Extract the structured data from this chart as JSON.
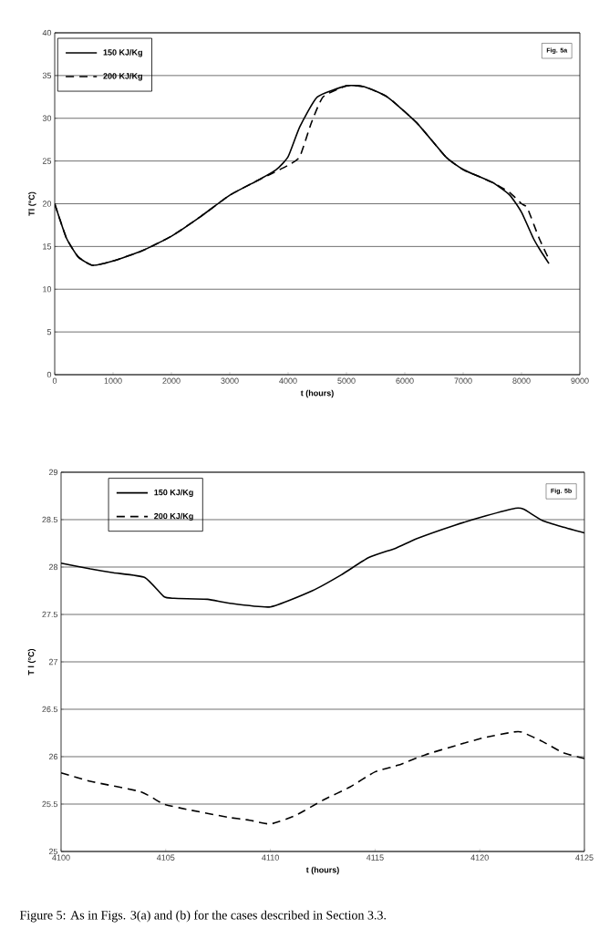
{
  "chart_data": [
    {
      "type": "line",
      "xlabel": "t (hours)",
      "ylabel": "Tl (°C)",
      "xlim": [
        0,
        9000
      ],
      "ylim": [
        0,
        40
      ],
      "xticks": [
        0,
        1000,
        2000,
        3000,
        4000,
        5000,
        6000,
        7000,
        8000,
        9000
      ],
      "yticks": [
        0,
        5,
        10,
        15,
        20,
        25,
        30,
        35,
        40
      ],
      "grid": "y",
      "legend": "top left",
      "annotations": [
        "Fig. 5a"
      ],
      "series": [
        {
          "name": "150 KJ/Kg",
          "color": "#000000",
          "line_style": "solid",
          "x": [
            0,
            200,
            400,
            650,
            1000,
            1500,
            2000,
            2500,
            3000,
            3500,
            3800,
            4000,
            4200,
            4500,
            5000,
            5300,
            5700,
            6200,
            6700,
            7000,
            7500,
            7800,
            8000,
            8200,
            8300,
            8470
          ],
          "values": [
            20,
            16,
            13.8,
            12.8,
            13.3,
            14.5,
            16.2,
            18.5,
            21,
            22.8,
            24,
            25.5,
            29,
            32.5,
            33.8,
            33.7,
            32.5,
            29.5,
            25.5,
            24,
            22.5,
            21,
            19,
            16,
            14.8,
            13
          ]
        },
        {
          "name": "200 KJ/Kg",
          "color": "#000000",
          "line_style": "dashed",
          "x": [
            0,
            200,
            400,
            650,
            1000,
            1500,
            2000,
            2500,
            3000,
            3500,
            3800,
            4000,
            4200,
            4400,
            4600,
            5000,
            5300,
            5700,
            6200,
            6700,
            7000,
            7500,
            7800,
            8000,
            8100,
            8300,
            8470
          ],
          "values": [
            20,
            16,
            13.8,
            12.8,
            13.3,
            14.5,
            16.2,
            18.5,
            21,
            22.8,
            23.8,
            24.5,
            25.5,
            29.5,
            32.5,
            33.8,
            33.7,
            32.5,
            29.5,
            25.5,
            24,
            22.5,
            21.3,
            20,
            19.5,
            16,
            13.5
          ]
        }
      ]
    },
    {
      "type": "line",
      "xlabel": "t (hours)",
      "ylabel": "T l (°C)",
      "xlim": [
        4100,
        4125
      ],
      "ylim": [
        25,
        29
      ],
      "xticks": [
        4100,
        4105,
        4110,
        4115,
        4120,
        4125
      ],
      "yticks": [
        25,
        25.5,
        26,
        26.5,
        27,
        27.5,
        28,
        28.5,
        29
      ],
      "grid": "y",
      "legend": "top left",
      "annotations": [
        "Fig. 5b",
        "Figure 5: As in Figs. 3(a) and (b) for the cases described in Section 3.3."
      ],
      "series": [
        {
          "name": "150 KJ/Kg",
          "color": "#000000",
          "line_style": "solid",
          "x": [
            4100,
            4101.4,
            4102.5,
            4104,
            4104.9,
            4105.4,
            4107,
            4108,
            4110,
            4112,
            4113.4,
            4114.7,
            4116,
            4117,
            4118.8,
            4120.3,
            4121.7,
            4122.1,
            4123,
            4124,
            4125
          ],
          "values": [
            28.04,
            27.98,
            27.94,
            27.89,
            27.69,
            27.67,
            27.66,
            27.62,
            27.58,
            27.75,
            27.92,
            28.1,
            28.2,
            28.3,
            28.44,
            28.54,
            28.62,
            28.61,
            28.49,
            28.42,
            28.36
          ]
        },
        {
          "name": "200 KJ/Kg",
          "color": "#000000",
          "line_style": "dashed",
          "x": [
            4100,
            4101.4,
            4103.8,
            4104.9,
            4106.1,
            4108,
            4109,
            4110,
            4111.2,
            4112.5,
            4113.8,
            4115,
            4116.1,
            4117.4,
            4118.9,
            4120.2,
            4121.6,
            4122,
            4123,
            4124,
            4125
          ],
          "values": [
            25.83,
            25.74,
            25.63,
            25.5,
            25.44,
            25.36,
            25.33,
            25.29,
            25.38,
            25.54,
            25.68,
            25.84,
            25.91,
            26.02,
            26.12,
            26.2,
            26.26,
            26.26,
            26.16,
            26.04,
            25.98
          ]
        }
      ]
    }
  ]
}
